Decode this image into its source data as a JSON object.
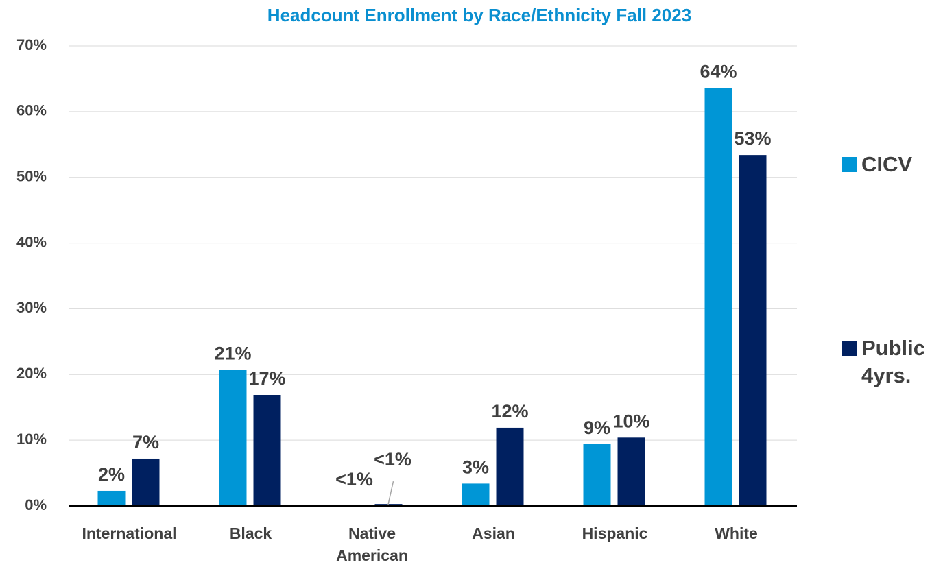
{
  "chart_data": {
    "type": "bar",
    "title": "Headcount Enrollment by Race/Ethnicity Fall 2023",
    "categories": [
      "International",
      "Black",
      "Native American",
      "Asian",
      "Hispanic",
      "White"
    ],
    "series": [
      {
        "name": "CICV",
        "color": "#0096d6",
        "values": [
          2.3,
          20.7,
          0.2,
          3.4,
          9.4,
          63.6
        ],
        "value_labels": [
          "2%",
          "21%",
          "<1%",
          "3%",
          "9%",
          "64%"
        ]
      },
      {
        "name": "Public 4yrs.",
        "color": "#002060",
        "values": [
          7.2,
          16.9,
          0.3,
          11.9,
          10.4,
          53.4
        ],
        "value_labels": [
          "7%",
          "17%",
          "<1%",
          "12%",
          "10%",
          "53%"
        ]
      }
    ],
    "ylim": [
      0,
      70
    ],
    "yticks": [
      {
        "value": 0,
        "label": "0%"
      },
      {
        "value": 10,
        "label": "10%"
      },
      {
        "value": 20,
        "label": "20%"
      },
      {
        "value": 30,
        "label": "30%"
      },
      {
        "value": 40,
        "label": "40%"
      },
      {
        "value": 50,
        "label": "50%"
      },
      {
        "value": 60,
        "label": "60%"
      },
      {
        "value": 70,
        "label": "70%"
      }
    ],
    "grid": true,
    "legend": "right"
  }
}
